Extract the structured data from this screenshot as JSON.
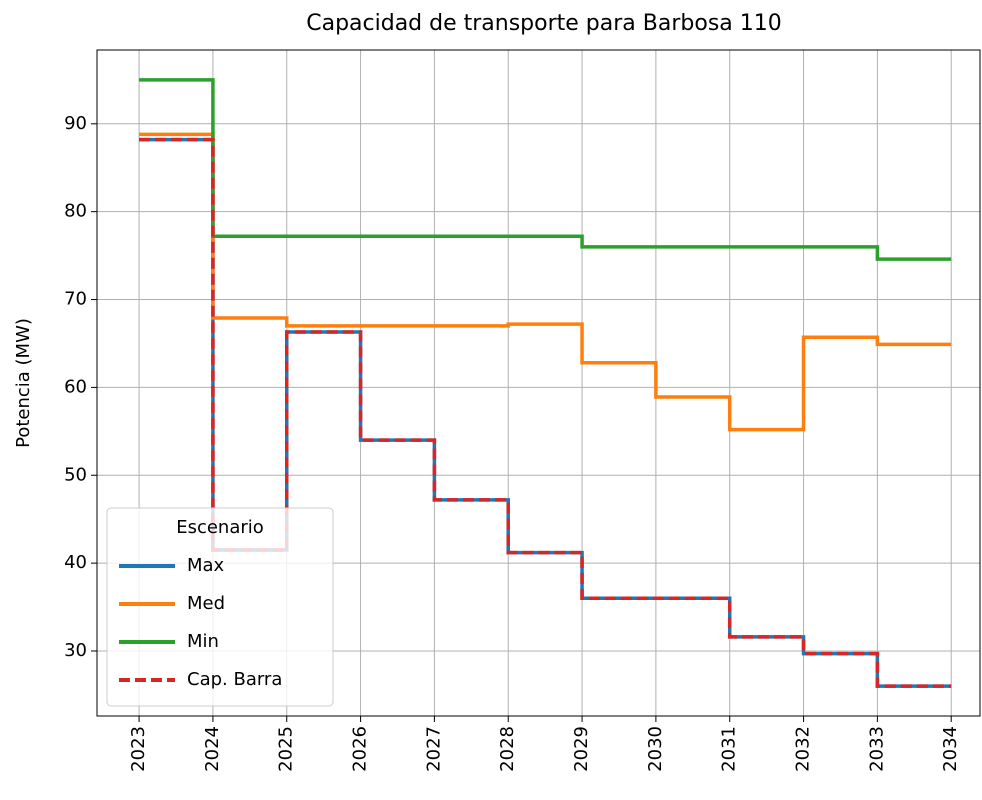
{
  "chart_data": {
    "type": "step",
    "title": "Capacidad de transporte para Barbosa 110",
    "ylabel": "Potencia (MW)",
    "x": [
      2023,
      2024,
      2025,
      2026,
      2027,
      2028,
      2029,
      2030,
      2031,
      2032,
      2033,
      2034
    ],
    "series": [
      {
        "name": "Max",
        "color": "#1f77b4",
        "linestyle": "solid",
        "values": [
          88.2,
          41.5,
          66.3,
          54.0,
          47.2,
          41.2,
          36.0,
          36.0,
          31.6,
          29.7,
          26.0,
          26.0
        ]
      },
      {
        "name": "Med",
        "color": "#ff7f0e",
        "linestyle": "solid",
        "values": [
          88.8,
          67.9,
          67.0,
          67.0,
          67.0,
          67.2,
          62.8,
          58.9,
          55.2,
          65.7,
          64.9,
          64.9
        ]
      },
      {
        "name": "Min",
        "color": "#2ca02c",
        "linestyle": "solid",
        "values": [
          95.0,
          77.2,
          77.2,
          77.2,
          77.2,
          77.2,
          76.0,
          76.0,
          76.0,
          76.0,
          74.6,
          74.6
        ]
      },
      {
        "name": "Cap. Barra",
        "color": "#d62728",
        "linestyle": "dashed",
        "values": [
          88.2,
          41.5,
          66.3,
          54.0,
          47.2,
          41.2,
          36.0,
          36.0,
          31.6,
          29.7,
          26.0,
          26.0
        ]
      }
    ],
    "legend_title": "Escenario",
    "legend": "lower left",
    "xlim": [
      2022.43,
      2034.39
    ],
    "xticks": [
      2023,
      2024,
      2025,
      2026,
      2027,
      2028,
      2029,
      2030,
      2031,
      2032,
      2033,
      2034
    ],
    "ylim": [
      22.6,
      98.4
    ],
    "yticks": [
      30,
      40,
      50,
      60,
      70,
      80,
      90
    ],
    "grid": true
  }
}
